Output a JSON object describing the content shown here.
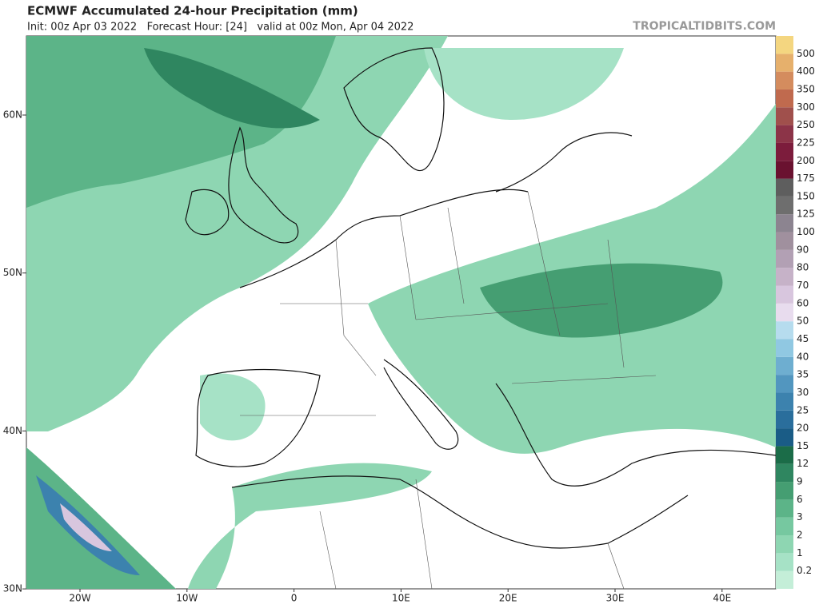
{
  "header": {
    "title": "ECMWF Accumulated 24-hour Precipitation (mm)",
    "subtitle": "Init: 00z Apr 03 2022   Forecast Hour: [24]   valid at 00z Mon, Apr 04 2022",
    "site": "TROPICALTIDBITS.COM"
  },
  "map": {
    "lat_labels": [
      "60N",
      "50N",
      "40N",
      "30N"
    ],
    "lon_labels": [
      "20W",
      "10W",
      "0",
      "10E",
      "20E",
      "30E",
      "40E"
    ]
  },
  "legend": {
    "labels": [
      "0.2",
      "1",
      "2",
      "3",
      "6",
      "9",
      "12",
      "15",
      "20",
      "25",
      "30",
      "35",
      "40",
      "45",
      "50",
      "60",
      "70",
      "80",
      "90",
      "100",
      "125",
      "150",
      "175",
      "200",
      "225",
      "250",
      "300",
      "350",
      "400",
      "500"
    ],
    "colors": [
      "#c4eed8",
      "#a6e2c6",
      "#8ed6b2",
      "#76c8a0",
      "#5cb488",
      "#459e72",
      "#2f8660",
      "#1b6c48",
      "#1a5c86",
      "#2a6e9c",
      "#3c82ae",
      "#5296bf",
      "#6eaed0",
      "#90c8e2",
      "#b6dcee",
      "#e8dcee",
      "#d8c6de",
      "#c6b2c8",
      "#b2a0b4",
      "#a0909e",
      "#8c8490",
      "#6e6e6e",
      "#5e5e5e",
      "#6a1230",
      "#7c1c3c",
      "#8c3448",
      "#a0504c",
      "#c06a4e",
      "#d48c5e",
      "#e6b06c",
      "#f4d680"
    ]
  }
}
